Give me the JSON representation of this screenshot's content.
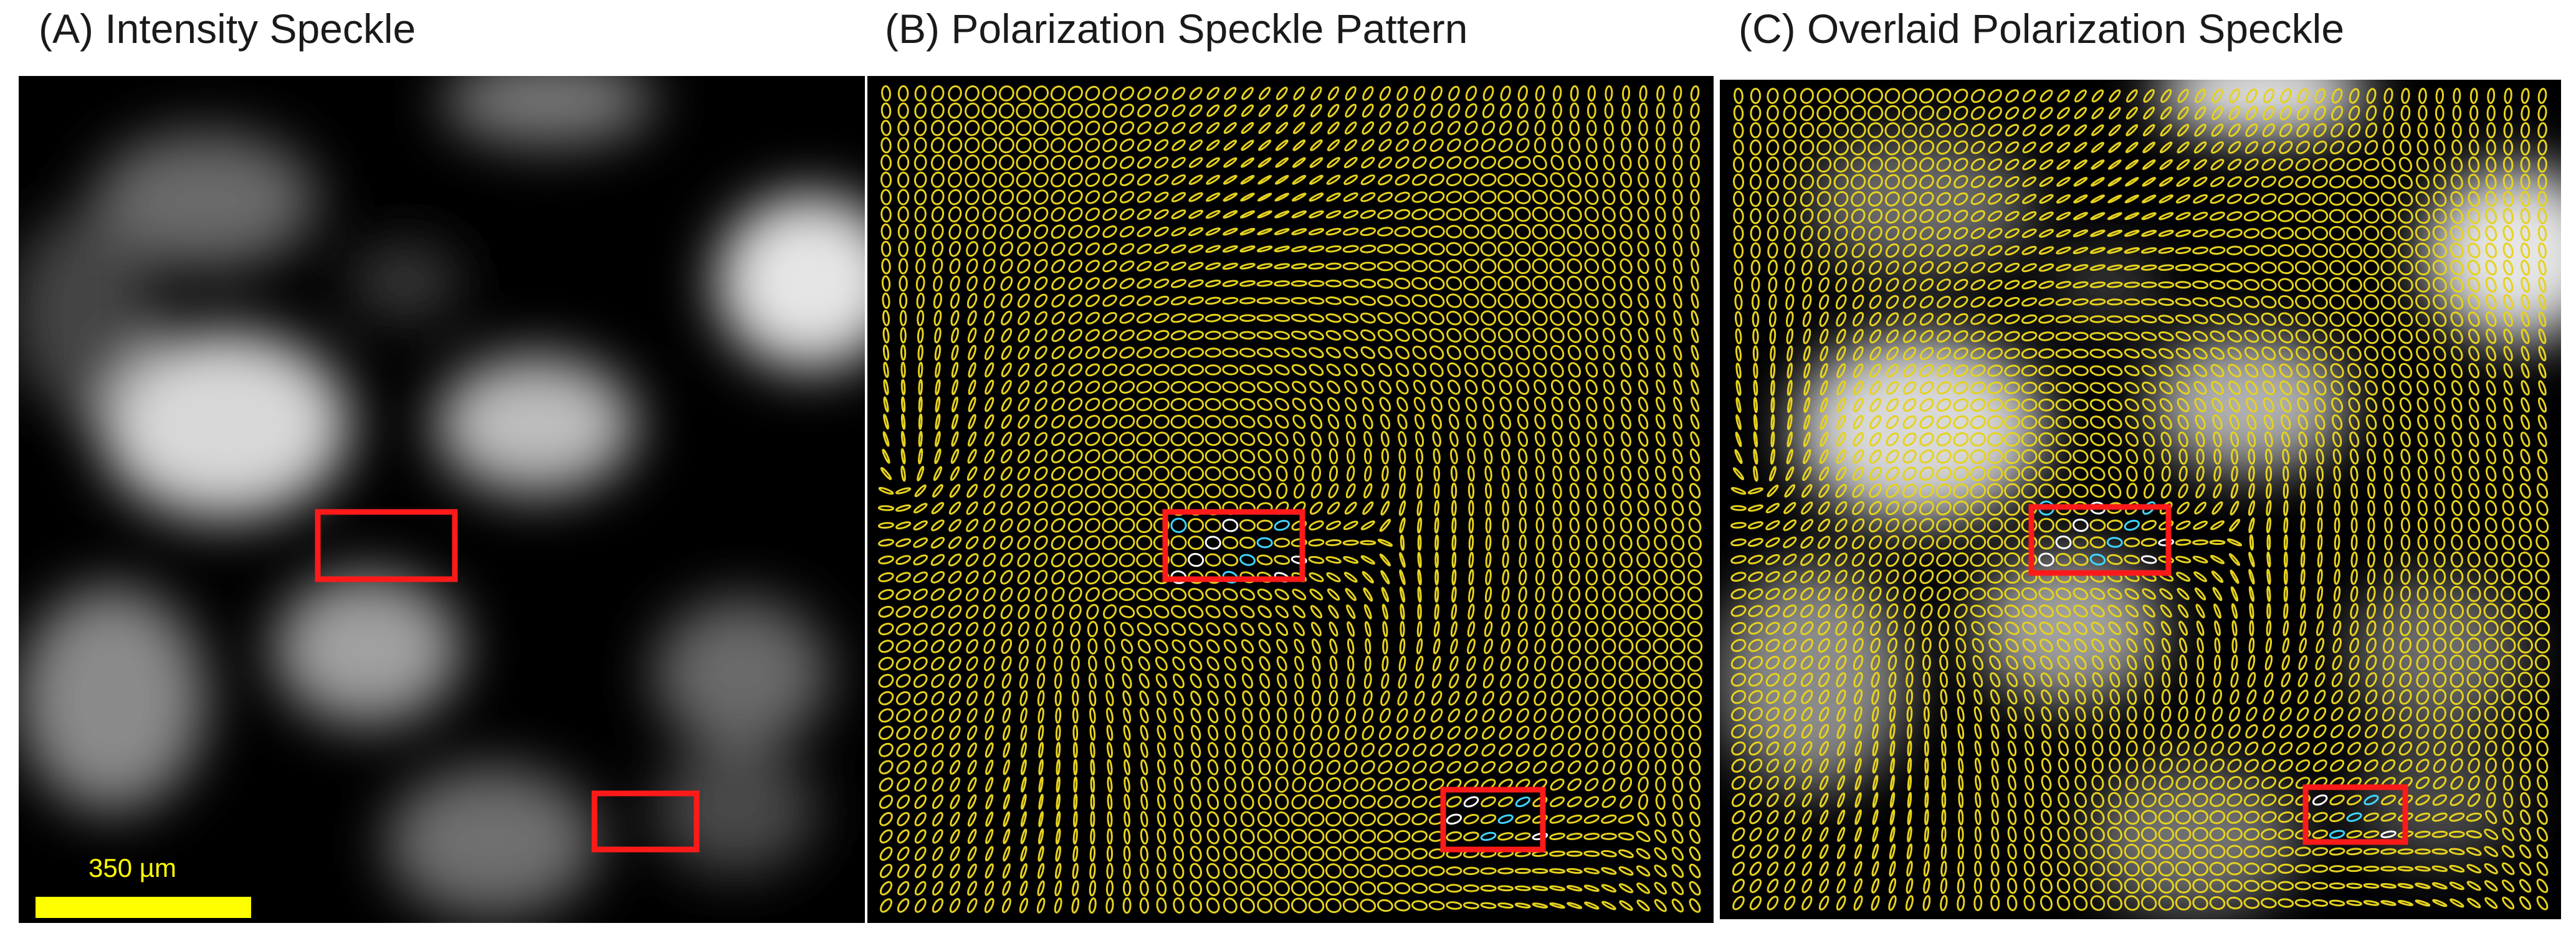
{
  "panels": [
    {
      "title": "(A) Intensity Speckle"
    },
    {
      "title": "(B) Polarization Speckle Pattern"
    },
    {
      "title": "(C) Overlaid Polarization Speckle"
    }
  ],
  "scale_bar": {
    "label": "350 µm",
    "color": "#ffff00"
  },
  "colors": {
    "ellipse": "#e6d21e",
    "highlight_box": "#ff1a1a",
    "singular_cyan": "#3fd6ff",
    "singular_white": "#ffffff",
    "background": "#000000"
  }
}
